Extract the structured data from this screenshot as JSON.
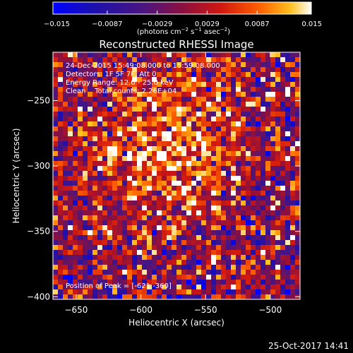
{
  "chart_data": {
    "type": "heatmap",
    "title": "Reconstructed RHESSI Image",
    "xlabel": "Heliocentric X (arcsec)",
    "ylabel": "Heliocentric Y (arcsec)",
    "xlim": [
      -668,
      -477
    ],
    "ylim": [
      -402,
      -213
    ],
    "x_ticks": [
      -650,
      -600,
      -550,
      -500
    ],
    "y_ticks": [
      -250,
      -300,
      -350,
      -400
    ],
    "colorbar": {
      "range": [
        -0.015,
        0.015
      ],
      "ticks": [
        -0.015,
        -0.0087,
        -0.0029,
        0.0029,
        0.0087,
        0.015
      ],
      "tick_labels": [
        "−0.015",
        "−0.0087",
        "−0.0029",
        "0.0029",
        "0.0087",
        "0.015"
      ],
      "unit_parts": [
        "(photons cm",
        "−2",
        " s",
        "−1",
        " asec",
        "−2",
        ")"
      ],
      "colors": [
        "#0000ff",
        "#1a10b0",
        "#4a1580",
        "#8a1040",
        "#d01810",
        "#ff6000",
        "#ffc020",
        "#ffffff"
      ]
    },
    "source": {
      "center": [
        -577,
        -287
      ],
      "sigma": [
        38,
        42
      ],
      "peak_value": 0.01,
      "background_mean": -0.0005,
      "noise": 0.006
    },
    "annotations": {
      "time_range": "24-Dec-2015 15:49:08.000 to 15:59:08.000",
      "detectors": "Detectors: 1F 5F 7F, Att 0",
      "energy": "Energy Range: 12.0 - 25.0 keV",
      "clean": "Clean    Total counts: 2.26E+04",
      "peak_position": "Position of Peak = [-621,-360]"
    }
  },
  "footer": {
    "timestamp": "25-Oct-2017 14:41"
  }
}
